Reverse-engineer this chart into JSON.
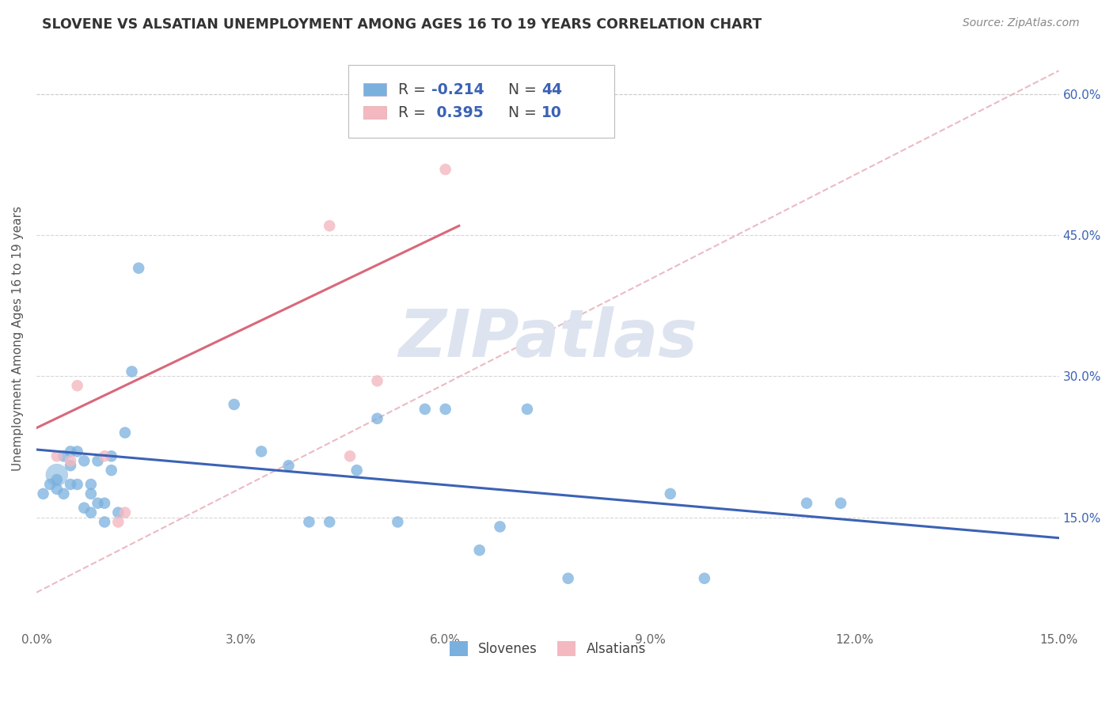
{
  "title": "SLOVENE VS ALSATIAN UNEMPLOYMENT AMONG AGES 16 TO 19 YEARS CORRELATION CHART",
  "source": "Source: ZipAtlas.com",
  "ylabel": "Unemployment Among Ages 16 to 19 years",
  "xlim": [
    0.0,
    0.15
  ],
  "ylim": [
    0.03,
    0.65
  ],
  "xtick_vals": [
    0.0,
    0.03,
    0.06,
    0.09,
    0.12,
    0.15
  ],
  "xtick_labels": [
    "0.0%",
    "3.0%",
    "6.0%",
    "9.0%",
    "12.0%",
    "15.0%"
  ],
  "ytick_right_vals": [
    0.15,
    0.3,
    0.45,
    0.6
  ],
  "ytick_right_labels": [
    "15.0%",
    "30.0%",
    "45.0%",
    "60.0%"
  ],
  "blue_scatter_color": "#7ab0de",
  "pink_scatter_color": "#f4b8c1",
  "blue_line_color": "#3b62b5",
  "pink_line_color": "#d9687a",
  "dashed_line_color": "#e8b4bc",
  "grid_color": "#cccccc",
  "legend_r_color": "#3b62b5",
  "legend_n_color": "#3b62b5",
  "legend_label_color": "#444444",
  "watermark_color": "#dde4f0",
  "bg_color": "#ffffff",
  "slovene_x": [
    0.001,
    0.002,
    0.003,
    0.003,
    0.004,
    0.004,
    0.005,
    0.005,
    0.005,
    0.006,
    0.006,
    0.007,
    0.007,
    0.008,
    0.008,
    0.008,
    0.009,
    0.009,
    0.01,
    0.01,
    0.011,
    0.011,
    0.012,
    0.013,
    0.014,
    0.015,
    0.029,
    0.033,
    0.037,
    0.04,
    0.043,
    0.047,
    0.05,
    0.053,
    0.057,
    0.06,
    0.065,
    0.068,
    0.072,
    0.078,
    0.093,
    0.098,
    0.113,
    0.118
  ],
  "slovene_y": [
    0.175,
    0.185,
    0.18,
    0.19,
    0.175,
    0.215,
    0.185,
    0.22,
    0.205,
    0.185,
    0.22,
    0.16,
    0.21,
    0.155,
    0.185,
    0.175,
    0.165,
    0.21,
    0.145,
    0.165,
    0.2,
    0.215,
    0.155,
    0.24,
    0.305,
    0.415,
    0.27,
    0.22,
    0.205,
    0.145,
    0.145,
    0.2,
    0.255,
    0.145,
    0.265,
    0.265,
    0.115,
    0.14,
    0.265,
    0.085,
    0.175,
    0.085,
    0.165,
    0.165
  ],
  "slovene_big_x": [
    0.003
  ],
  "slovene_big_y": [
    0.195
  ],
  "alsatian_x": [
    0.003,
    0.005,
    0.006,
    0.01,
    0.012,
    0.013,
    0.043,
    0.046,
    0.05,
    0.06
  ],
  "alsatian_y": [
    0.215,
    0.21,
    0.29,
    0.215,
    0.145,
    0.155,
    0.46,
    0.215,
    0.295,
    0.52
  ],
  "slovene_trend_x": [
    0.0,
    0.15
  ],
  "slovene_trend_y": [
    0.222,
    0.128
  ],
  "alsatian_trend_x": [
    0.0,
    0.062
  ],
  "alsatian_trend_y": [
    0.245,
    0.46
  ],
  "diag_line_x": [
    0.0,
    0.15
  ],
  "diag_line_y": [
    0.07,
    0.625
  ],
  "scatter_size": 110,
  "scatter_big_size": 420,
  "legend_r_slovene": "-0.214",
  "legend_n_slovene": "44",
  "legend_r_alsatian": "0.395",
  "legend_n_alsatian": "10",
  "watermark": "ZIPatlas"
}
